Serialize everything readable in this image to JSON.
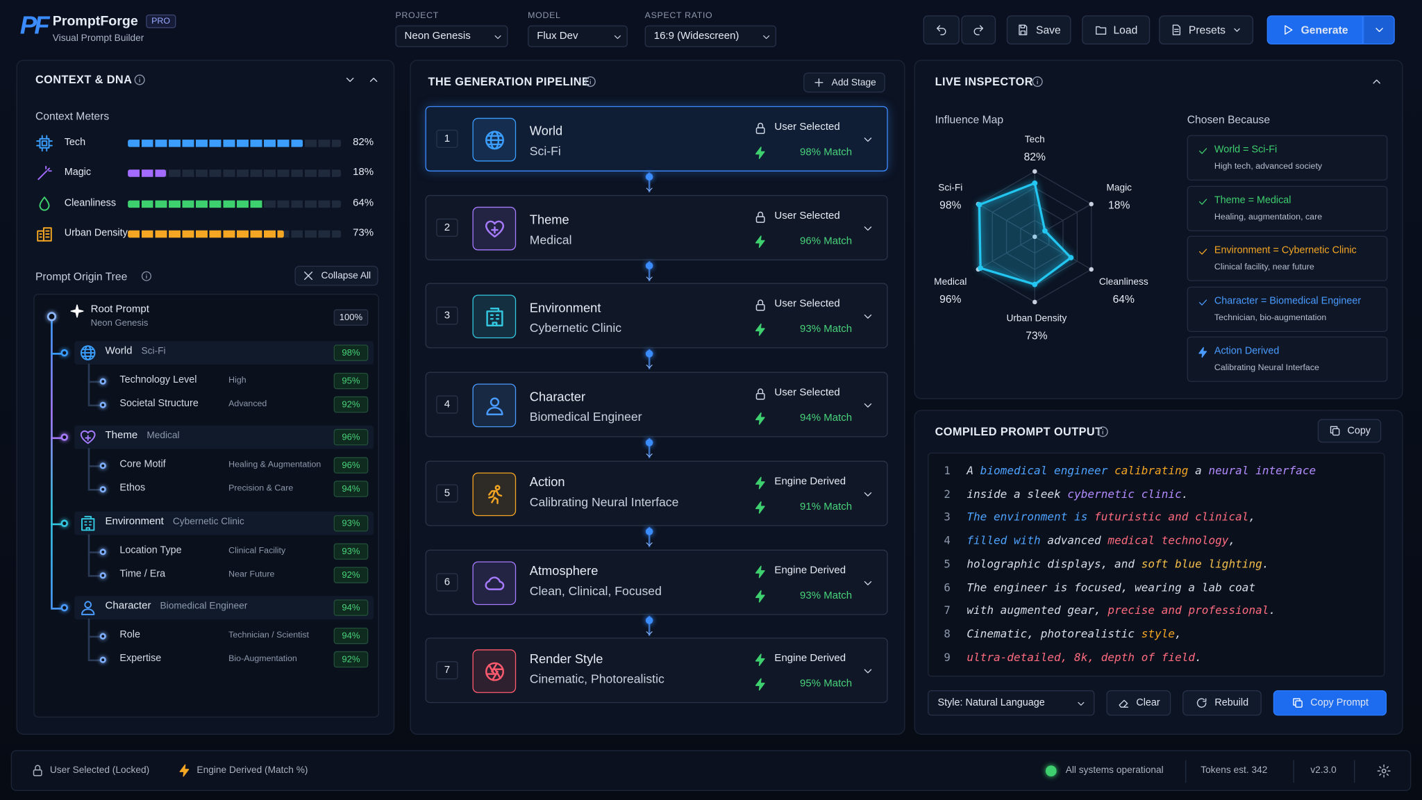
{
  "header": {
    "logo": "PF",
    "brand": "PromptForge",
    "badge": "PRO",
    "tagline": "Visual Prompt Builder",
    "selectors": [
      {
        "label": "PROJECT",
        "value": "Neon Genesis"
      },
      {
        "label": "MODEL",
        "value": "Flux Dev"
      },
      {
        "label": "ASPECT RATIO",
        "value": "16:9 (Widescreen)"
      }
    ],
    "buttons": [
      "Save",
      "Load",
      "Presets"
    ],
    "generate": "Generate"
  },
  "context": {
    "title": "CONTEXT & DNA",
    "meters_title": "Context Meters",
    "meters": [
      {
        "name": "Tech",
        "value": 82,
        "label": "82%",
        "color": "#3b9eff"
      },
      {
        "name": "Magic",
        "value": 18,
        "label": "18%",
        "color": "#a36bff"
      },
      {
        "name": "Cleanliness",
        "value": 64,
        "label": "64%",
        "color": "#3ecf6e"
      },
      {
        "name": "Urban Density",
        "value": 73,
        "label": "73%",
        "color": "#f5a623"
      }
    ],
    "tree_title": "Prompt Origin Tree",
    "collapse": "Collapse All",
    "root": {
      "name": "Root Prompt",
      "value": "Neon Genesis",
      "score": "100%"
    },
    "groups": [
      {
        "name": "World",
        "value": "Sci-Fi",
        "score": "98%",
        "color": "#3b9eff",
        "children": [
          {
            "name": "Technology Level",
            "value": "High",
            "score": "95%"
          },
          {
            "name": "Societal Structure",
            "value": "Advanced",
            "score": "92%"
          }
        ]
      },
      {
        "name": "Theme",
        "value": "Medical",
        "score": "96%",
        "color": "#a77bff",
        "children": [
          {
            "name": "Core Motif",
            "value": "Healing & Augmentation",
            "score": "96%"
          },
          {
            "name": "Ethos",
            "value": "Precision & Care",
            "score": "94%"
          }
        ]
      },
      {
        "name": "Environment",
        "value": "Cybernetic Clinic",
        "score": "93%",
        "color": "#34c8e0",
        "children": [
          {
            "name": "Location Type",
            "value": "Clinical Facility",
            "score": "93%"
          },
          {
            "name": "Time / Era",
            "value": "Near Future",
            "score": "92%"
          }
        ]
      },
      {
        "name": "Character",
        "value": "Biomedical Engineer",
        "score": "94%",
        "color": "#4a9bff",
        "children": [
          {
            "name": "Role",
            "value": "Technician / Scientist",
            "score": "94%"
          },
          {
            "name": "Expertise",
            "value": "Bio-Augmentation",
            "score": "92%"
          }
        ]
      }
    ]
  },
  "pipeline": {
    "title": "THE GENERATION PIPELINE",
    "add": "Add Stage",
    "stages": [
      {
        "number": 1,
        "name": "World",
        "value": "Sci-Fi",
        "source": "User Selected",
        "match": "98% Match",
        "color": "#3b9eff"
      },
      {
        "number": 2,
        "name": "Theme",
        "value": "Medical",
        "source": "User Selected",
        "match": "96% Match",
        "color": "#a77bff"
      },
      {
        "number": 3,
        "name": "Environment",
        "value": "Cybernetic Clinic",
        "source": "User Selected",
        "match": "93% Match",
        "color": "#34c8e0"
      },
      {
        "number": 4,
        "name": "Character",
        "value": "Biomedical Engineer",
        "source": "User Selected",
        "match": "94% Match",
        "color": "#4a9bff"
      },
      {
        "number": 5,
        "name": "Action",
        "value": "Calibrating Neural Interface",
        "source": "Engine Derived",
        "match": "91% Match",
        "color": "#f5a623"
      },
      {
        "number": 6,
        "name": "Atmosphere",
        "value": "Clean, Clinical, Focused",
        "source": "Engine Derived",
        "match": "93% Match",
        "color": "#a77bff"
      },
      {
        "number": 7,
        "name": "Render Style",
        "value": "Cinematic, Photorealistic",
        "source": "Engine Derived",
        "match": "95% Match",
        "color": "#ff5a6e"
      }
    ]
  },
  "inspector": {
    "title": "LIVE INSPECTOR",
    "map_title": "Influence Map",
    "reasons_title": "Chosen Because",
    "radar": {
      "type": "radar",
      "rlim": [
        0,
        100
      ],
      "color": "#22c6f0",
      "axes": [
        {
          "name": "Tech",
          "value": 82,
          "label": "82%"
        },
        {
          "name": "Magic",
          "value": 18,
          "label": "18%"
        },
        {
          "name": "Cleanliness",
          "value": 64,
          "label": "64%"
        },
        {
          "name": "Urban Density",
          "value": 73,
          "label": "73%"
        },
        {
          "name": "Medical",
          "value": 96,
          "label": "96%"
        },
        {
          "name": "Sci-Fi",
          "value": 98,
          "label": "98%"
        }
      ]
    },
    "reasons": [
      {
        "title": "World = Sci-Fi",
        "detail": "High tech, advanced society",
        "color": "#3ecf6e"
      },
      {
        "title": "Theme = Medical",
        "detail": "Healing, augmentation, care",
        "color": "#3ecf6e"
      },
      {
        "title": "Environment = Cybernetic Clinic",
        "detail": "Clinical facility, near future",
        "color": "#f5a623"
      },
      {
        "title": "Character = Biomedical Engineer",
        "detail": "Technician, bio-augmentation",
        "color": "#4a9bff"
      },
      {
        "title": "Action Derived",
        "detail": "Calibrating Neural Interface",
        "color": "#4a9bff"
      }
    ]
  },
  "output": {
    "title": "COMPILED PROMPT OUTPUT",
    "copy": "Copy",
    "lines": [
      {
        "n": 1,
        "segments": [
          {
            "text": "A ",
            "color": "#d8dee9"
          },
          {
            "text": "biomedical engineer",
            "color": "#4ea3ff"
          },
          {
            "text": " calibrating",
            "color": "#f5a623"
          },
          {
            "text": " a ",
            "color": "#d8dee9"
          },
          {
            "text": "neural interface",
            "color": "#b48cff"
          }
        ]
      },
      {
        "n": 2,
        "segments": [
          {
            "text": "inside a sleek ",
            "color": "#d8dee9"
          },
          {
            "text": "cybernetic clinic",
            "color": "#b48cff"
          },
          {
            "text": ".",
            "color": "#d8dee9"
          }
        ]
      },
      {
        "n": 3,
        "segments": [
          {
            "text": "The environment is ",
            "color": "#4ea3ff"
          },
          {
            "text": "futuristic and clinical",
            "color": "#ff6b7f"
          },
          {
            "text": ",",
            "color": "#d8dee9"
          }
        ]
      },
      {
        "n": 4,
        "segments": [
          {
            "text": "filled with",
            "color": "#4ea3ff"
          },
          {
            "text": " advanced ",
            "color": "#d8dee9"
          },
          {
            "text": "medical technology",
            "color": "#ff6b7f"
          },
          {
            "text": ",",
            "color": "#d8dee9"
          }
        ]
      },
      {
        "n": 5,
        "segments": [
          {
            "text": "holographic displays, and ",
            "color": "#d8dee9"
          },
          {
            "text": "soft blue lighting",
            "color": "#f5c04a"
          },
          {
            "text": ".",
            "color": "#d8dee9"
          }
        ]
      },
      {
        "n": 6,
        "segments": [
          {
            "text": "The engineer is focused, wearing a lab coat",
            "color": "#d8dee9"
          }
        ]
      },
      {
        "n": 7,
        "segments": [
          {
            "text": "with augmented gear, ",
            "color": "#d8dee9"
          },
          {
            "text": "precise and professional",
            "color": "#ff6b7f"
          },
          {
            "text": ".",
            "color": "#d8dee9"
          }
        ]
      },
      {
        "n": 8,
        "segments": [
          {
            "text": "Cinematic, photorealistic ",
            "color": "#d8dee9"
          },
          {
            "text": "style",
            "color": "#f5a623"
          },
          {
            "text": ",",
            "color": "#d8dee9"
          }
        ]
      },
      {
        "n": 9,
        "segments": [
          {
            "text": "ultra-detailed, 8k, depth of field",
            "color": "#ff6b7f"
          },
          {
            "text": ".",
            "color": "#d8dee9"
          }
        ]
      }
    ],
    "style": "Style: Natural Language",
    "clear": "Clear",
    "rebuild": "Rebuild",
    "copy_prompt": "Copy Prompt"
  },
  "footer": {
    "locked": "User Selected (Locked)",
    "derived": "Engine Derived (Match %)",
    "status": "All systems operational",
    "tokens": "Tokens est. 342",
    "version": "v2.3.0"
  }
}
